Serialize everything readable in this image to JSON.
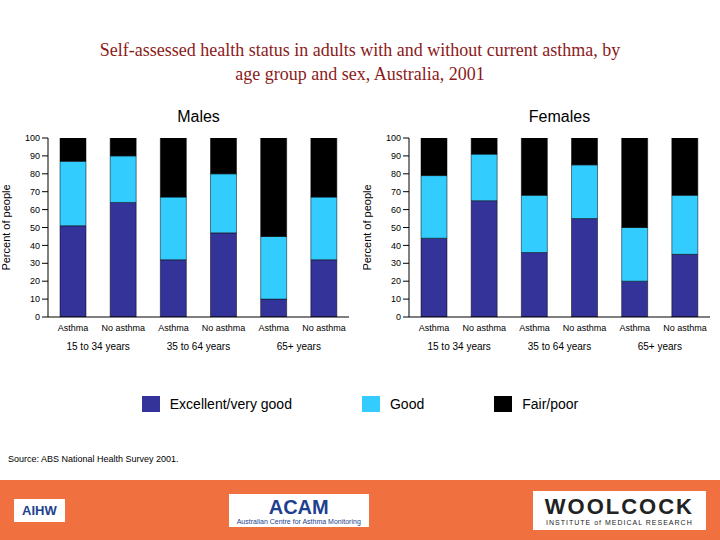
{
  "title": "Self-assessed health status in adults with and without current asthma, by age group and sex, Australia, 2001",
  "source": "Source: ABS National Health Survey 2001.",
  "footer": [
    "AIHW",
    "ACAM",
    "Australian Centre for Asthma Monitoring",
    "WOOLCOCK",
    "INSTITUTE of MEDICAL RESEARCH"
  ],
  "chart_data": [
    {
      "type": "bar",
      "stacked": true,
      "title": "Males",
      "y_label": "Percent of people",
      "categories": [
        "Asthma",
        "No asthma",
        "Asthma",
        "No asthma",
        "Asthma",
        "No asthma"
      ],
      "groups": [
        "15 to 34 years",
        "35 to 64 years",
        "65+ years"
      ],
      "ylim": [
        0,
        100
      ],
      "yticks": [
        0,
        10,
        20,
        30,
        40,
        50,
        60,
        70,
        80,
        90,
        100
      ],
      "grid": false,
      "legend": "bottom",
      "series": [
        {
          "name": "Excellent/very good",
          "color": "#333399",
          "values": [
            51,
            64,
            32,
            47,
            10,
            32
          ]
        },
        {
          "name": "Good",
          "color": "#33ccff",
          "values": [
            36,
            26,
            35,
            33,
            35,
            35
          ]
        },
        {
          "name": "Fair/poor",
          "color": "#000000",
          "values": [
            13,
            10,
            33,
            20,
            55,
            33
          ]
        }
      ]
    },
    {
      "type": "bar",
      "stacked": true,
      "title": "Females",
      "y_label": "Percent of people",
      "categories": [
        "Asthma",
        "No asthma",
        "Asthma",
        "No asthma",
        "Asthma",
        "No asthma"
      ],
      "groups": [
        "15 to 34 years",
        "35 to 64 years",
        "65+ years"
      ],
      "ylim": [
        0,
        100
      ],
      "yticks": [
        0,
        10,
        20,
        30,
        40,
        50,
        60,
        70,
        80,
        90,
        100
      ],
      "grid": false,
      "legend": "bottom",
      "series": [
        {
          "name": "Excellent/very good",
          "color": "#333399",
          "values": [
            44,
            65,
            36,
            55,
            20,
            35
          ]
        },
        {
          "name": "Good",
          "color": "#33ccff",
          "values": [
            35,
            26,
            32,
            30,
            30,
            33
          ]
        },
        {
          "name": "Fair/poor",
          "color": "#000000",
          "values": [
            21,
            9,
            32,
            15,
            50,
            32
          ]
        }
      ]
    }
  ]
}
